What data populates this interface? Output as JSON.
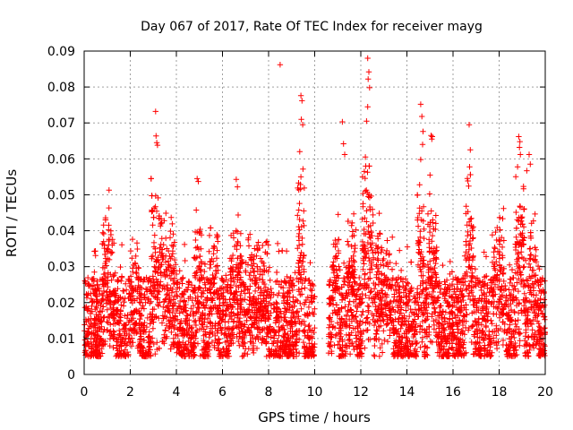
{
  "chart_data": {
    "type": "scatter",
    "title": "Day 067 of 2017, Rate Of TEC Index for receiver mayg",
    "xlabel": "GPS time / hours",
    "ylabel": "ROTI / TECUs",
    "xlim": [
      0,
      20
    ],
    "ylim": [
      0,
      0.09
    ],
    "x_ticks": [
      "0",
      "2",
      "4",
      "6",
      "8",
      "10",
      "12",
      "14",
      "16",
      "18",
      "20"
    ],
    "y_ticks": [
      "0",
      "0.01",
      "0.02",
      "0.03",
      "0.04",
      "0.05",
      "0.06",
      "0.07",
      "0.08",
      "0.09"
    ],
    "grid": true,
    "marker": "+",
    "color": "#ff0000",
    "data_gap": [
      10.0,
      10.6
    ],
    "series": [
      {
        "points": [
          [
            3.1,
            0.0732
          ],
          [
            3.12,
            0.0664
          ],
          [
            3.15,
            0.0645
          ],
          [
            3.18,
            0.0638
          ],
          [
            4.9,
            0.0545
          ],
          [
            4.95,
            0.0537
          ],
          [
            6.6,
            0.0543
          ],
          [
            6.65,
            0.0522
          ],
          [
            8.5,
            0.0862
          ],
          [
            9.4,
            0.0776
          ],
          [
            9.45,
            0.0762
          ],
          [
            9.42,
            0.071
          ],
          [
            9.48,
            0.0695
          ],
          [
            9.35,
            0.062
          ],
          [
            9.4,
            0.055
          ],
          [
            9.3,
            0.0533
          ],
          [
            11.2,
            0.0703
          ],
          [
            11.25,
            0.0642
          ],
          [
            11.3,
            0.0612
          ],
          [
            12.3,
            0.088
          ],
          [
            12.35,
            0.0842
          ],
          [
            12.32,
            0.0822
          ],
          [
            12.38,
            0.0798
          ],
          [
            12.3,
            0.0745
          ],
          [
            12.25,
            0.0705
          ],
          [
            12.2,
            0.0605
          ],
          [
            12.15,
            0.0565
          ],
          [
            14.6,
            0.0752
          ],
          [
            14.65,
            0.0718
          ],
          [
            14.7,
            0.0676
          ],
          [
            14.68,
            0.064
          ],
          [
            14.6,
            0.0598
          ],
          [
            14.55,
            0.0528
          ],
          [
            15.05,
            0.0665
          ],
          [
            15.1,
            0.0662
          ],
          [
            15.08,
            0.0655
          ],
          [
            15.0,
            0.0555
          ],
          [
            16.7,
            0.0695
          ],
          [
            16.75,
            0.0625
          ],
          [
            16.72,
            0.0578
          ],
          [
            16.68,
            0.0524
          ],
          [
            18.85,
            0.0662
          ],
          [
            18.9,
            0.0648
          ],
          [
            18.88,
            0.0632
          ],
          [
            18.92,
            0.0612
          ],
          [
            18.8,
            0.0578
          ],
          [
            19.3,
            0.0612
          ],
          [
            19.35,
            0.0585
          ],
          [
            19.2,
            0.0567
          ]
        ]
      }
    ]
  }
}
